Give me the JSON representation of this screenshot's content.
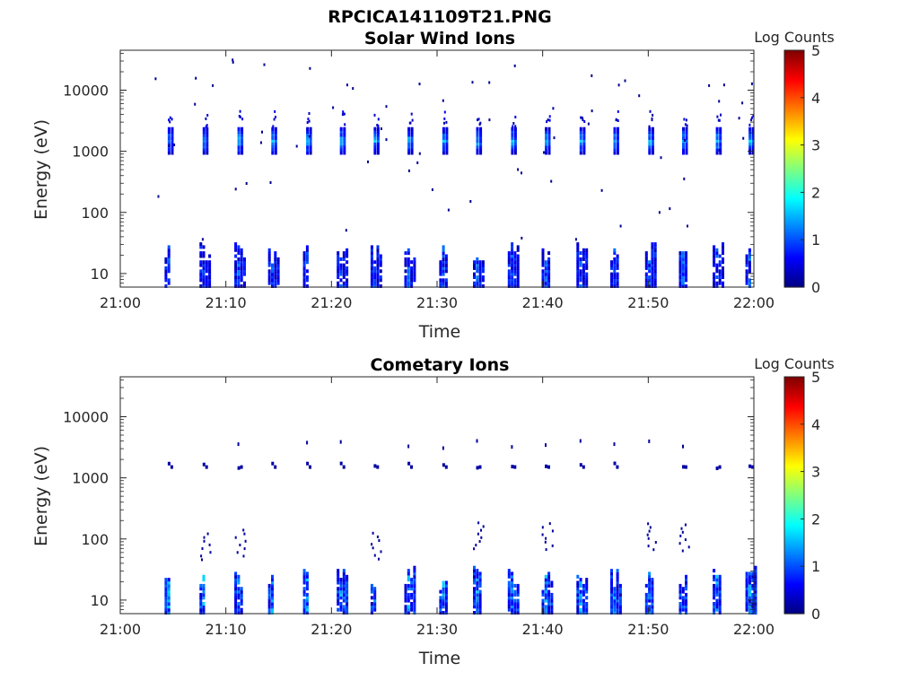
{
  "figure": {
    "title": "RPCICA141109T21.PNG"
  },
  "chart_data": [
    {
      "type": "heatmap",
      "title": "Solar Wind Ions",
      "xlabel": "Time",
      "ylabel": "Energy (eV)",
      "xlim": [
        "21:00",
        "22:00"
      ],
      "xticks": [
        "21:00",
        "21:10",
        "21:20",
        "21:30",
        "21:40",
        "21:50",
        "22:00"
      ],
      "ylim": [
        6,
        45000
      ],
      "yscale": "log",
      "yticks": [
        "10",
        "100",
        "1000",
        "10000"
      ],
      "colorbar": {
        "label": "Log Counts",
        "min": 0,
        "max": 5,
        "ticks": [
          "0",
          "1",
          "2",
          "3",
          "4",
          "5"
        ],
        "colormap": "jet"
      },
      "sweeps_minutes": [
        4.5,
        7.8,
        11.1,
        14.3,
        17.6,
        20.8,
        24.0,
        27.2,
        30.5,
        33.7,
        37.0,
        40.2,
        43.5,
        46.7,
        50.0,
        53.2,
        56.4,
        59.5
      ],
      "features": {
        "low_energy_band_eV": [
          6,
          35
        ],
        "solar_wind_peak_eV": 1500,
        "solar_wind_peak_log_counts": 1.8
      }
    },
    {
      "type": "heatmap",
      "title": "Cometary Ions",
      "xlabel": "Time",
      "ylabel": "Energy (eV)",
      "xlim": [
        "21:00",
        "22:00"
      ],
      "xticks": [
        "21:00",
        "21:10",
        "21:20",
        "21:30",
        "21:40",
        "21:50",
        "22:00"
      ],
      "ylim": [
        6,
        45000
      ],
      "yscale": "log",
      "yticks": [
        "10",
        "100",
        "1000",
        "10000"
      ],
      "colorbar": {
        "label": "Log Counts",
        "min": 0,
        "max": 5,
        "ticks": [
          "0",
          "1",
          "2",
          "3",
          "4",
          "5"
        ],
        "colormap": "jet"
      },
      "sweeps_minutes": [
        4.5,
        7.8,
        11.1,
        14.3,
        17.6,
        20.8,
        24.0,
        27.2,
        30.5,
        33.7,
        37.0,
        40.2,
        43.5,
        46.7,
        50.0,
        53.2,
        56.4,
        59.5
      ],
      "features": {
        "low_energy_band_eV": [
          6,
          35
        ],
        "low_energy_peak_log_counts": 1.7,
        "weak_solar_wind_eV": 1500
      }
    }
  ]
}
